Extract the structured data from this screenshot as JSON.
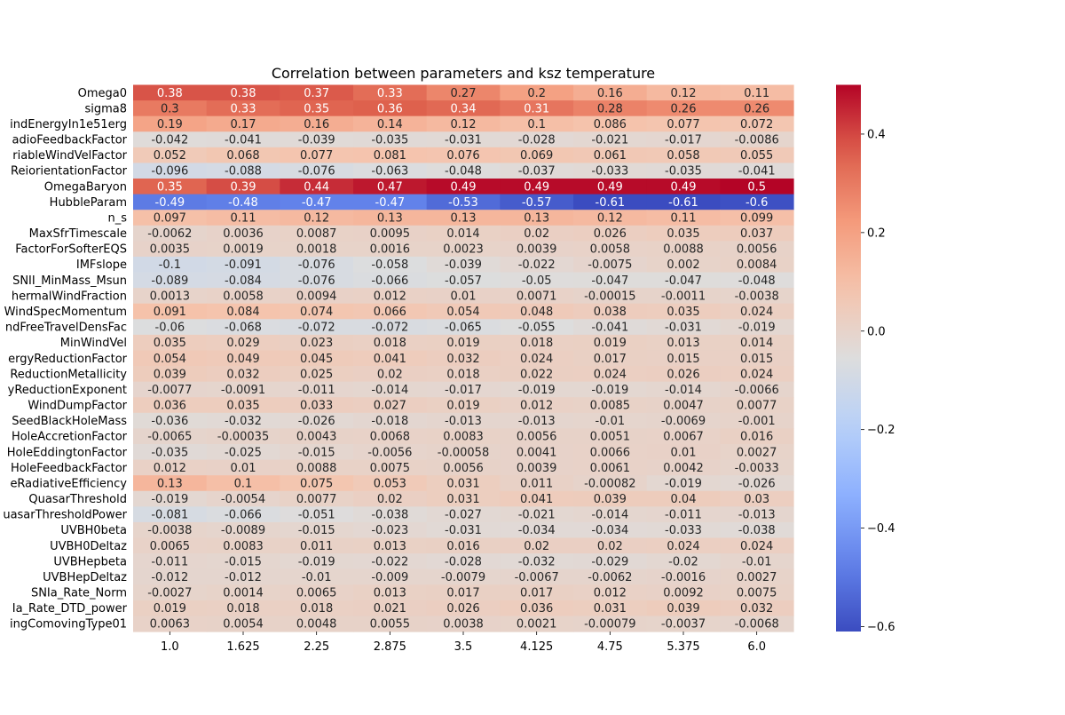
{
  "chart_data": {
    "type": "heatmap",
    "title": "Correlation between parameters and ksz temperature",
    "xlabel": "",
    "ylabel": "",
    "x_tick_labels": [
      "1.0",
      "1.625",
      "2.25",
      "2.875",
      "3.5",
      "4.125",
      "4.75",
      "5.375",
      "6.0"
    ],
    "y_tick_labels": [
      "Omega0",
      "sigma8",
      "indEnergyIn1e51erg",
      "adioFeedbackFactor",
      "riableWindVelFactor",
      "ReiorientationFactor",
      "OmegaBaryon",
      "HubbleParam",
      "n_s",
      "MaxSfrTimescale",
      "FactorForSofterEQS",
      "IMFslope",
      "SNII_MinMass_Msun",
      "hermalWindFraction",
      "WindSpecMomentum",
      "ndFreeTravelDensFac",
      "MinWindVel",
      "ergyReductionFactor",
      "ReductionMetallicity",
      "yReductionExponent",
      "WindDumpFactor",
      "SeedBlackHoleMass",
      "HoleAccretionFactor",
      "HoleEddingtonFactor",
      "HoleFeedbackFactor",
      "eRadiativeEfficiency",
      "QuasarThreshold",
      "uasarThresholdPower",
      "UVBH0beta",
      "UVBH0Deltaz",
      "UVBHepbeta",
      "UVBHepDeltaz",
      "SNIa_Rate_Norm",
      "Ia_Rate_DTD_power",
      "ingComovingType01"
    ],
    "cell_labels": [
      [
        "0.38",
        "0.38",
        "0.37",
        "0.33",
        "0.27",
        "0.2",
        "0.16",
        "0.12",
        "0.11"
      ],
      [
        "0.3",
        "0.33",
        "0.35",
        "0.36",
        "0.34",
        "0.31",
        "0.28",
        "0.26",
        "0.26"
      ],
      [
        "0.19",
        "0.17",
        "0.16",
        "0.14",
        "0.12",
        "0.1",
        "0.086",
        "0.077",
        "0.072"
      ],
      [
        "-0.042",
        "-0.041",
        "-0.039",
        "-0.035",
        "-0.031",
        "-0.028",
        "-0.021",
        "-0.017",
        "-0.0086"
      ],
      [
        "0.052",
        "0.068",
        "0.077",
        "0.081",
        "0.076",
        "0.069",
        "0.061",
        "0.058",
        "0.055"
      ],
      [
        "-0.096",
        "-0.088",
        "-0.076",
        "-0.063",
        "-0.048",
        "-0.037",
        "-0.033",
        "-0.035",
        "-0.041"
      ],
      [
        "0.35",
        "0.39",
        "0.44",
        "0.47",
        "0.49",
        "0.49",
        "0.49",
        "0.49",
        "0.5"
      ],
      [
        "-0.49",
        "-0.48",
        "-0.47",
        "-0.47",
        "-0.53",
        "-0.57",
        "-0.61",
        "-0.61",
        "-0.6"
      ],
      [
        "0.097",
        "0.11",
        "0.12",
        "0.13",
        "0.13",
        "0.13",
        "0.12",
        "0.11",
        "0.099"
      ],
      [
        "-0.0062",
        "0.0036",
        "0.0087",
        "0.0095",
        "0.014",
        "0.02",
        "0.026",
        "0.035",
        "0.037"
      ],
      [
        "0.0035",
        "0.0019",
        "0.0018",
        "0.0016",
        "0.0023",
        "0.0039",
        "0.0058",
        "0.0088",
        "0.0056"
      ],
      [
        "-0.1",
        "-0.091",
        "-0.076",
        "-0.058",
        "-0.039",
        "-0.022",
        "-0.0075",
        "0.002",
        "0.0084"
      ],
      [
        "-0.089",
        "-0.084",
        "-0.076",
        "-0.066",
        "-0.057",
        "-0.05",
        "-0.047",
        "-0.047",
        "-0.048"
      ],
      [
        "0.0013",
        "0.0058",
        "0.0094",
        "0.012",
        "0.01",
        "0.0071",
        "-0.00015",
        "-0.0011",
        "-0.0038"
      ],
      [
        "0.091",
        "0.084",
        "0.074",
        "0.066",
        "0.054",
        "0.048",
        "0.038",
        "0.035",
        "0.024"
      ],
      [
        "-0.06",
        "-0.068",
        "-0.072",
        "-0.072",
        "-0.065",
        "-0.055",
        "-0.041",
        "-0.031",
        "-0.019"
      ],
      [
        "0.035",
        "0.029",
        "0.023",
        "0.018",
        "0.019",
        "0.018",
        "0.019",
        "0.013",
        "0.014"
      ],
      [
        "0.054",
        "0.049",
        "0.045",
        "0.041",
        "0.032",
        "0.024",
        "0.017",
        "0.015",
        "0.015"
      ],
      [
        "0.039",
        "0.032",
        "0.025",
        "0.02",
        "0.018",
        "0.022",
        "0.024",
        "0.026",
        "0.024"
      ],
      [
        "-0.0077",
        "-0.0091",
        "-0.011",
        "-0.014",
        "-0.017",
        "-0.019",
        "-0.019",
        "-0.014",
        "-0.0066"
      ],
      [
        "0.036",
        "0.035",
        "0.033",
        "0.027",
        "0.019",
        "0.012",
        "0.0085",
        "0.0047",
        "0.0077"
      ],
      [
        "-0.036",
        "-0.032",
        "-0.026",
        "-0.018",
        "-0.013",
        "-0.013",
        "-0.01",
        "-0.0069",
        "-0.001"
      ],
      [
        "-0.0065",
        "-0.00035",
        "0.0043",
        "0.0068",
        "0.0083",
        "0.0056",
        "0.0051",
        "0.0067",
        "0.016"
      ],
      [
        "-0.035",
        "-0.025",
        "-0.015",
        "-0.0056",
        "-0.00058",
        "0.0041",
        "0.0066",
        "0.01",
        "0.0027"
      ],
      [
        "0.012",
        "0.01",
        "0.0088",
        "0.0075",
        "0.0056",
        "0.0039",
        "0.0061",
        "0.0042",
        "-0.0033"
      ],
      [
        "0.13",
        "0.1",
        "0.075",
        "0.053",
        "0.031",
        "0.011",
        "-0.00082",
        "-0.019",
        "-0.026"
      ],
      [
        "-0.019",
        "-0.0054",
        "0.0077",
        "0.02",
        "0.031",
        "0.041",
        "0.039",
        "0.04",
        "0.03"
      ],
      [
        "-0.081",
        "-0.066",
        "-0.051",
        "-0.038",
        "-0.027",
        "-0.021",
        "-0.014",
        "-0.011",
        "-0.013"
      ],
      [
        "-0.0038",
        "-0.0089",
        "-0.015",
        "-0.023",
        "-0.031",
        "-0.034",
        "-0.034",
        "-0.033",
        "-0.038"
      ],
      [
        "0.0065",
        "0.0083",
        "0.011",
        "0.013",
        "0.016",
        "0.02",
        "0.02",
        "0.024",
        "0.024"
      ],
      [
        "-0.011",
        "-0.015",
        "-0.019",
        "-0.022",
        "-0.028",
        "-0.032",
        "-0.029",
        "-0.02",
        "-0.01"
      ],
      [
        "-0.012",
        "-0.012",
        "-0.01",
        "-0.009",
        "-0.0079",
        "-0.0067",
        "-0.0062",
        "-0.0016",
        "0.0027"
      ],
      [
        "-0.0027",
        "0.0014",
        "0.0065",
        "0.013",
        "0.017",
        "0.017",
        "0.012",
        "0.0092",
        "0.0075"
      ],
      [
        "0.019",
        "0.018",
        "0.018",
        "0.021",
        "0.026",
        "0.036",
        "0.031",
        "0.039",
        "0.032"
      ],
      [
        "0.0063",
        "0.0054",
        "0.0048",
        "0.0055",
        "0.0038",
        "0.0021",
        "-0.00079",
        "-0.0037",
        "-0.0068"
      ]
    ],
    "colormap": "coolwarm",
    "colorbar_range": [
      -0.61,
      0.5
    ],
    "colorbar_ticks": [
      "0.4",
      "0.2",
      "0.0",
      "−0.2",
      "−0.4",
      "−0.6"
    ],
    "colorbar_tick_values": [
      0.4,
      0.2,
      0.0,
      -0.2,
      -0.4,
      -0.6
    ],
    "grid": false,
    "legend": "colorbar-right"
  }
}
